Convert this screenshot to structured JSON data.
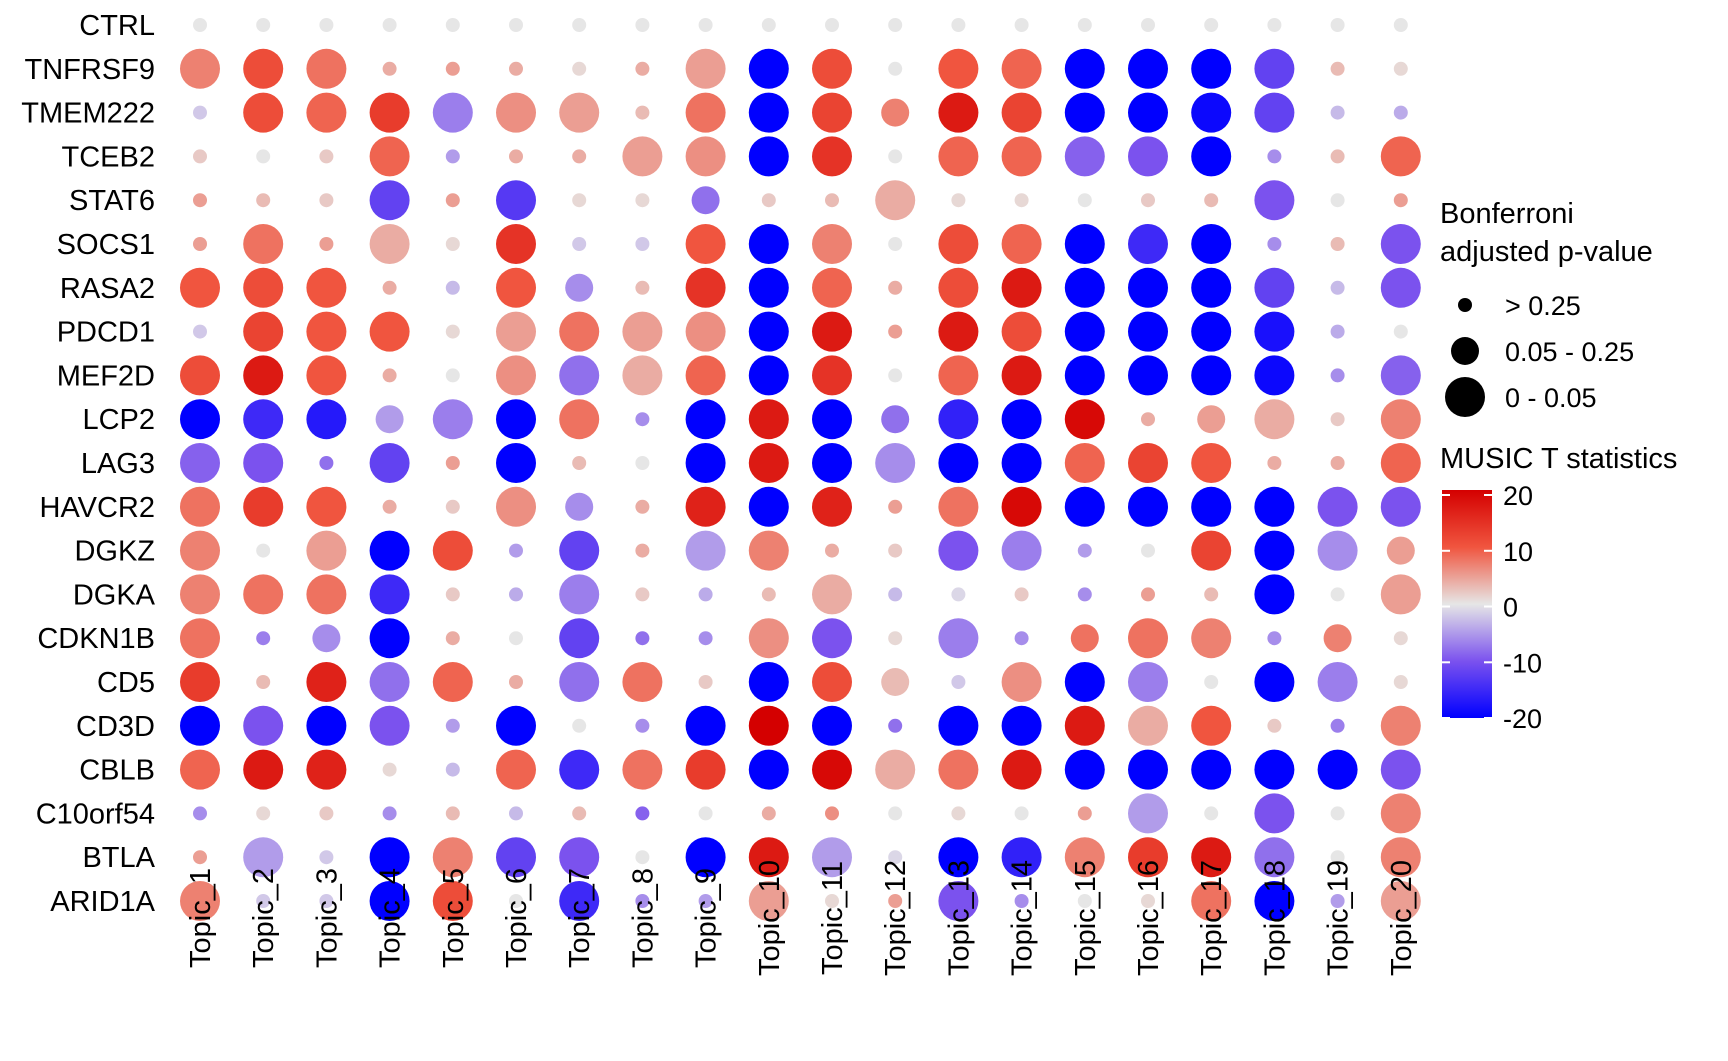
{
  "chart_data": {
    "type": "dot-heatmap",
    "title": "",
    "xlabel": "",
    "ylabel": "",
    "topics": [
      "Topic_1",
      "Topic_2",
      "Topic_3",
      "Topic_4",
      "Topic_5",
      "Topic_6",
      "Topic_7",
      "Topic_8",
      "Topic_9",
      "Topic_10",
      "Topic_11",
      "Topic_12",
      "Topic_13",
      "Topic_14",
      "Topic_15",
      "Topic_16",
      "Topic_17",
      "Topic_18",
      "Topic_19",
      "Topic_20"
    ],
    "genes": [
      "CTRL",
      "TNFRSF9",
      "TMEM222",
      "TCEB2",
      "STAT6",
      "SOCS1",
      "RASA2",
      "PDCD1",
      "MEF2D",
      "LCP2",
      "LAG3",
      "HAVCR2",
      "DGKZ",
      "DGKA",
      "CDKN1B",
      "CD5",
      "CD3D",
      "CBLB",
      "C10orf54",
      "BTLA",
      "ARID1A"
    ],
    "t_values": [
      [
        0,
        0,
        0,
        0,
        0,
        0,
        0,
        0,
        0,
        0,
        0,
        0,
        0,
        0,
        0,
        0,
        0,
        0,
        0,
        0
      ],
      [
        7,
        11,
        8,
        4,
        5,
        4,
        1,
        4,
        5,
        -20,
        11,
        0,
        10,
        9,
        -20,
        -20,
        -20,
        -12,
        3,
        1
      ],
      [
        -2,
        11,
        9,
        13,
        -7,
        6,
        5,
        3,
        8,
        -20,
        12,
        7,
        17,
        12,
        -20,
        -20,
        -19,
        -12,
        -3,
        -4
      ],
      [
        2,
        0,
        2,
        9,
        -5,
        4,
        4,
        5,
        6,
        -20,
        14,
        0,
        9,
        9,
        -9,
        -10,
        -20,
        -6,
        3,
        9
      ],
      [
        5,
        3,
        2,
        -12,
        5,
        -13,
        1,
        1,
        -8,
        2,
        3,
        4,
        1,
        1,
        0,
        2,
        3,
        -10,
        0,
        5
      ],
      [
        5,
        8,
        5,
        4,
        1,
        14,
        -2,
        -2,
        10,
        -20,
        7,
        0,
        11,
        9,
        -20,
        -15,
        -20,
        -6,
        3,
        -10
      ],
      [
        10,
        11,
        10,
        4,
        -3,
        10,
        -6,
        3,
        14,
        -20,
        9,
        4,
        11,
        17,
        -20,
        -20,
        -20,
        -12,
        -3,
        -10
      ],
      [
        -2,
        12,
        10,
        10,
        1,
        5,
        8,
        5,
        6,
        -20,
        17,
        5,
        17,
        11,
        -20,
        -20,
        -20,
        -18,
        -4,
        0
      ],
      [
        11,
        17,
        10,
        4,
        0,
        6,
        -8,
        4,
        9,
        -20,
        14,
        0,
        9,
        17,
        -20,
        -20,
        -20,
        -19,
        -6,
        -9
      ],
      [
        -20,
        -15,
        -17,
        -5,
        -7,
        -20,
        8,
        -6,
        -20,
        17,
        -20,
        -8,
        -16,
        -20,
        19,
        4,
        5,
        4,
        2,
        7
      ],
      [
        -9,
        -10,
        -8,
        -12,
        5,
        -20,
        3,
        0,
        -20,
        17,
        -20,
        -6,
        -20,
        -20,
        9,
        12,
        10,
        4,
        4,
        9
      ],
      [
        8,
        13,
        10,
        4,
        2,
        6,
        -6,
        4,
        16,
        -20,
        16,
        5,
        8,
        19,
        -20,
        -20,
        -20,
        -20,
        -10,
        -10
      ],
      [
        7,
        0,
        5,
        -20,
        11,
        -5,
        -12,
        4,
        -5,
        7,
        4,
        2,
        -10,
        -7,
        -5,
        0,
        12,
        -20,
        -6,
        5
      ],
      [
        7,
        8,
        8,
        -15,
        2,
        -4,
        -7,
        2,
        -4,
        3,
        4,
        -3,
        -1,
        2,
        -6,
        5,
        3,
        -20,
        0,
        5
      ],
      [
        8,
        -7,
        -6,
        -20,
        4,
        0,
        -12,
        -8,
        -6,
        6,
        -10,
        1,
        -7,
        -6,
        8,
        8,
        7,
        -6,
        7,
        1
      ],
      [
        13,
        3,
        16,
        -8,
        9,
        4,
        -8,
        8,
        2,
        -20,
        11,
        3,
        -2,
        6,
        -20,
        -7,
        0,
        -20,
        -7,
        1
      ],
      [
        -20,
        -10,
        -20,
        -10,
        -5,
        -20,
        0,
        -6,
        -20,
        20,
        -20,
        -8,
        -20,
        -20,
        17,
        4,
        10,
        2,
        -7,
        7
      ],
      [
        9,
        17,
        16,
        1,
        -3,
        9,
        -15,
        8,
        13,
        -20,
        19,
        4,
        8,
        17,
        -20,
        -20,
        -20,
        -20,
        -20,
        -10
      ],
      [
        -6,
        1,
        2,
        -6,
        3,
        -3,
        3,
        -9,
        0,
        4,
        6,
        0,
        1,
        0,
        5,
        -5,
        0,
        -10,
        0,
        7
      ],
      [
        5,
        -5,
        -2,
        -20,
        7,
        -12,
        -10,
        0,
        -20,
        17,
        -5,
        -1,
        -20,
        -16,
        7,
        13,
        17,
        -8,
        0,
        7
      ],
      [
        7,
        -2,
        -2,
        -20,
        11,
        0,
        -15,
        -6,
        -5,
        5,
        1,
        5,
        -10,
        -6,
        0,
        1,
        8,
        -20,
        -5,
        5
      ]
    ],
    "size_classes": [
      [
        1,
        1,
        1,
        1,
        1,
        1,
        1,
        1,
        1,
        1,
        1,
        1,
        1,
        1,
        1,
        1,
        1,
        1,
        1,
        1
      ],
      [
        3,
        3,
        3,
        1,
        1,
        1,
        1,
        1,
        3,
        3,
        3,
        1,
        3,
        3,
        3,
        3,
        3,
        3,
        1,
        1
      ],
      [
        1,
        3,
        3,
        3,
        3,
        3,
        3,
        1,
        3,
        3,
        3,
        2,
        3,
        3,
        3,
        3,
        3,
        3,
        1,
        1
      ],
      [
        1,
        1,
        1,
        3,
        1,
        1,
        1,
        3,
        3,
        3,
        3,
        1,
        3,
        3,
        3,
        3,
        3,
        1,
        1,
        3
      ],
      [
        1,
        1,
        1,
        3,
        1,
        3,
        1,
        1,
        2,
        1,
        1,
        3,
        1,
        1,
        1,
        1,
        1,
        3,
        1,
        1
      ],
      [
        1,
        3,
        1,
        3,
        1,
        3,
        1,
        1,
        3,
        3,
        3,
        1,
        3,
        3,
        3,
        3,
        3,
        1,
        1,
        3
      ],
      [
        3,
        3,
        3,
        1,
        1,
        3,
        2,
        1,
        3,
        3,
        3,
        1,
        3,
        3,
        3,
        3,
        3,
        3,
        1,
        3
      ],
      [
        1,
        3,
        3,
        3,
        1,
        3,
        3,
        3,
        3,
        3,
        3,
        1,
        3,
        3,
        3,
        3,
        3,
        3,
        1,
        1
      ],
      [
        3,
        3,
        3,
        1,
        1,
        3,
        3,
        3,
        3,
        3,
        3,
        1,
        3,
        3,
        3,
        3,
        3,
        3,
        1,
        3
      ],
      [
        3,
        3,
        3,
        2,
        3,
        3,
        3,
        1,
        3,
        3,
        3,
        2,
        3,
        3,
        3,
        1,
        2,
        3,
        1,
        3
      ],
      [
        3,
        3,
        1,
        3,
        1,
        3,
        1,
        1,
        3,
        3,
        3,
        3,
        3,
        3,
        3,
        3,
        3,
        1,
        1,
        3
      ],
      [
        3,
        3,
        3,
        1,
        1,
        3,
        2,
        1,
        3,
        3,
        3,
        1,
        3,
        3,
        3,
        3,
        3,
        3,
        3,
        3
      ],
      [
        3,
        1,
        3,
        3,
        3,
        1,
        3,
        1,
        3,
        3,
        1,
        1,
        3,
        3,
        1,
        1,
        3,
        3,
        3,
        2
      ],
      [
        3,
        3,
        3,
        3,
        1,
        1,
        3,
        1,
        1,
        1,
        3,
        1,
        1,
        1,
        1,
        1,
        1,
        3,
        1,
        3
      ],
      [
        3,
        1,
        2,
        3,
        1,
        1,
        3,
        1,
        1,
        3,
        3,
        1,
        3,
        1,
        2,
        3,
        3,
        1,
        2,
        1
      ],
      [
        3,
        1,
        3,
        3,
        3,
        1,
        3,
        3,
        1,
        3,
        3,
        2,
        1,
        3,
        3,
        3,
        1,
        3,
        3,
        1
      ],
      [
        3,
        3,
        3,
        3,
        1,
        3,
        1,
        1,
        3,
        3,
        3,
        1,
        3,
        3,
        3,
        3,
        3,
        1,
        1,
        3
      ],
      [
        3,
        3,
        3,
        1,
        1,
        3,
        3,
        3,
        3,
        3,
        3,
        3,
        3,
        3,
        3,
        3,
        3,
        3,
        3,
        3
      ],
      [
        1,
        1,
        1,
        1,
        1,
        1,
        1,
        1,
        1,
        1,
        1,
        1,
        1,
        1,
        1,
        3,
        1,
        3,
        1,
        3
      ],
      [
        1,
        3,
        1,
        3,
        3,
        3,
        3,
        1,
        3,
        3,
        3,
        1,
        3,
        3,
        3,
        3,
        3,
        3,
        1,
        3
      ],
      [
        3,
        1,
        1,
        3,
        3,
        1,
        3,
        1,
        1,
        3,
        1,
        1,
        3,
        1,
        1,
        1,
        3,
        3,
        1,
        3
      ]
    ],
    "legend": {
      "size_title_lines": [
        "Bonferroni",
        "adjusted p-value"
      ],
      "size_levels": [
        "> 0.25",
        "0.05 - 0.25",
        "0 - 0.05"
      ],
      "color_title": "MUSIC T statistics",
      "color_ticks": [
        20,
        10,
        0,
        -10,
        -20
      ],
      "color_range": [
        -20,
        20
      ],
      "color_stops": [
        {
          "t": -20,
          "color": "#0000ff"
        },
        {
          "t": -10,
          "color": "#7b52ee"
        },
        {
          "t": 0,
          "color": "#e6e6e6"
        },
        {
          "t": 10,
          "color": "#f0553f"
        },
        {
          "t": 20,
          "color": "#d40000"
        }
      ],
      "placement": "right"
    }
  }
}
